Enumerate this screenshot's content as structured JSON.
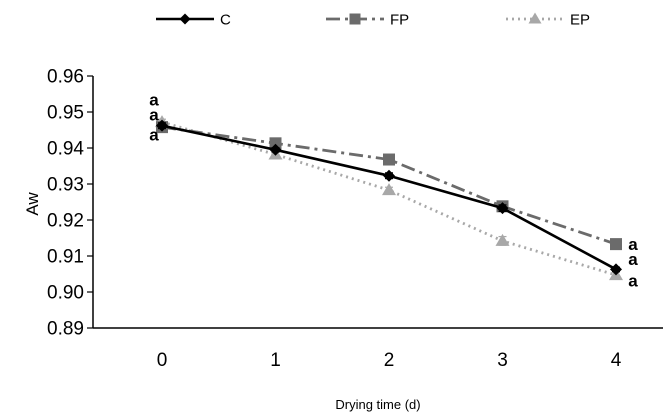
{
  "chart_data": {
    "type": "line",
    "title": "",
    "xlabel": "Drying time (d)",
    "ylabel": "Aw",
    "x": [
      0,
      1,
      2,
      3,
      4
    ],
    "x_tick_labels": [
      "0",
      "1",
      "2",
      "3",
      "4"
    ],
    "ylim": [
      0.89,
      0.96
    ],
    "y_tick_labels": [
      "0.89",
      "0.90",
      "0.91",
      "0.92",
      "0.93",
      "0.94",
      "0.95",
      "0.96"
    ],
    "grid": false,
    "legend_position": "top",
    "series": [
      {
        "name": "C",
        "values": [
          0.9462,
          0.9395,
          0.9323,
          0.9233,
          0.9063
        ],
        "error": [
          0.0008,
          0.0006,
          0.0008,
          0.0009,
          0.0006
        ],
        "color": "#000000",
        "marker": "diamond",
        "line_style": "solid"
      },
      {
        "name": "FP",
        "values": [
          0.9458,
          0.9413,
          0.9368,
          0.9238,
          0.9133
        ],
        "error": [
          0.0012,
          0.0006,
          0.0008,
          0.0012,
          0.0012
        ],
        "color": "#6b6b6b",
        "marker": "square",
        "line_style": "dash-dot"
      },
      {
        "name": "EP",
        "values": [
          0.9472,
          0.9382,
          0.9283,
          0.9142,
          0.9047
        ],
        "error": [
          0.0008,
          0.0006,
          0.0008,
          0.0012,
          0.0008
        ],
        "color": "#a8a8a8",
        "marker": "triangle",
        "line_style": "dotted"
      }
    ],
    "annotations": [
      {
        "text": "a",
        "x": 0,
        "y": 0.9535
      },
      {
        "text": "a",
        "x": 0,
        "y": 0.9493
      },
      {
        "text": "a",
        "x": 0,
        "y": 0.9437
      },
      {
        "text": "a",
        "x": 4,
        "y": 0.9134
      },
      {
        "text": "a",
        "x": 4,
        "y": 0.9092
      },
      {
        "text": "a",
        "x": 4,
        "y": 0.9032
      }
    ]
  }
}
